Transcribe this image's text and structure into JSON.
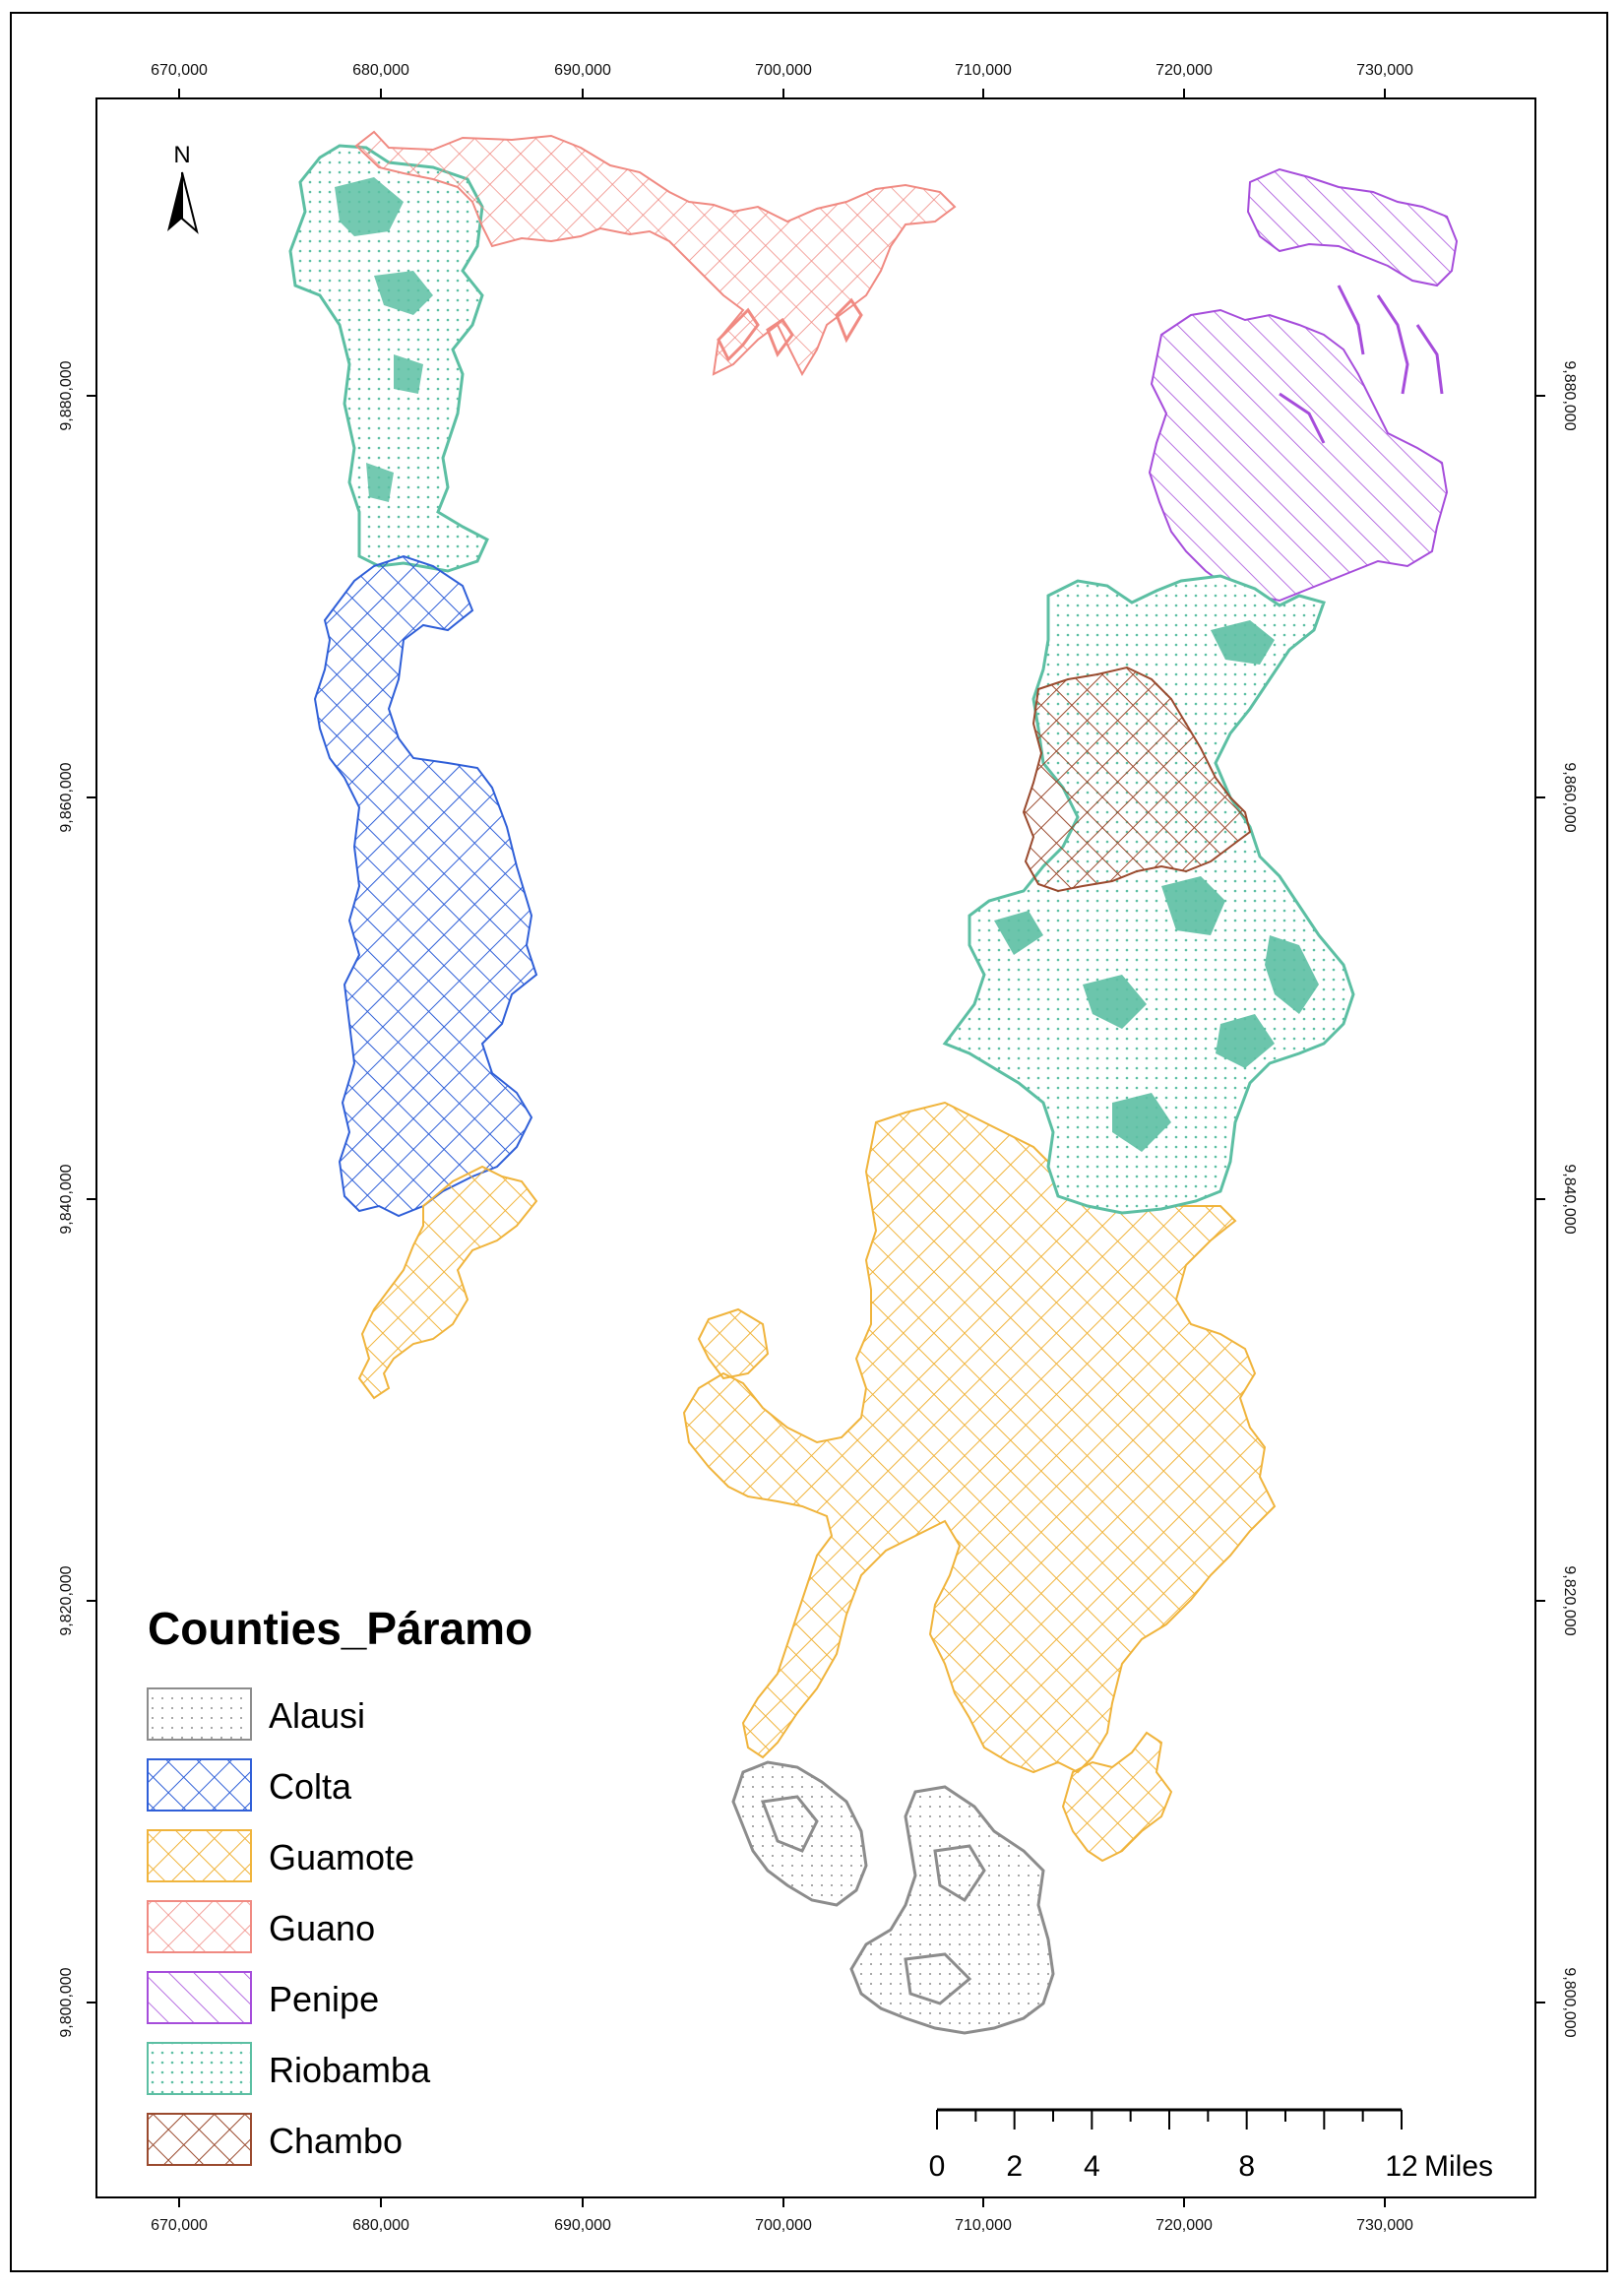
{
  "map": {
    "x_ticks": [
      "670,000",
      "680,000",
      "690,000",
      "700,000",
      "710,000",
      "720,000",
      "730,000"
    ],
    "y_ticks": [
      "9,880,000",
      "9,860,000",
      "9,840,000",
      "9,820,000",
      "9,800,000"
    ],
    "north_arrow": {
      "label": "N",
      "icon": "north-arrow-icon"
    },
    "legend": {
      "title": "Counties_Páramo",
      "items": [
        {
          "label": "Alausi",
          "color": "#8c8c8c",
          "pattern": "dots"
        },
        {
          "label": "Colta",
          "color": "#2f5fd8",
          "pattern": "crosshatch"
        },
        {
          "label": "Guamote",
          "color": "#f0b43c",
          "pattern": "crosshatch"
        },
        {
          "label": "Guano",
          "color": "#f08a82",
          "pattern": "crosshatch"
        },
        {
          "label": "Penipe",
          "color": "#a64ddb",
          "pattern": "diagonal"
        },
        {
          "label": "Riobamba",
          "color": "#5cbfa3",
          "pattern": "dots"
        },
        {
          "label": "Chambo",
          "color": "#9a4a2e",
          "pattern": "crosshatch"
        }
      ]
    },
    "scale_bar": {
      "ticks": [
        "0",
        "2",
        "4",
        "8",
        "12"
      ],
      "unit": "Miles"
    }
  }
}
